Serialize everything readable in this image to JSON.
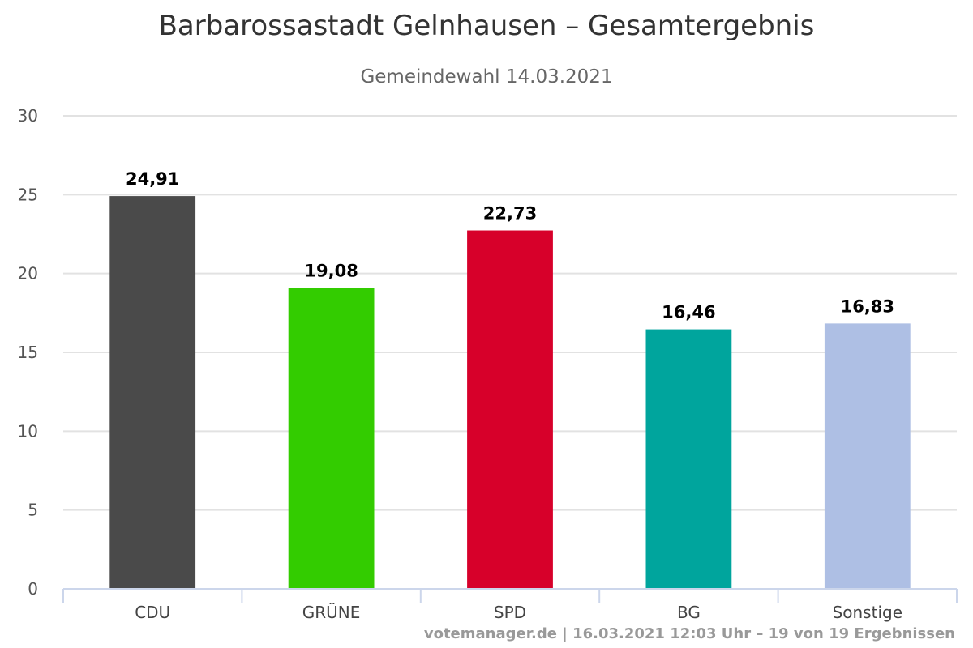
{
  "chart_data": {
    "type": "bar",
    "title": "Barbarossastadt Gelnhausen – Gesamtergebnis",
    "subtitle": "Gemeindewahl 14.03.2021",
    "categories": [
      "CDU",
      "GRÜNE",
      "SPD",
      "BG",
      "Sonstige"
    ],
    "values": [
      24.91,
      19.08,
      22.73,
      16.46,
      16.83
    ],
    "value_labels": [
      "24,91",
      "19,08",
      "22,73",
      "16,46",
      "16,83"
    ],
    "colors": [
      "#4a4a4a",
      "#33cc00",
      "#d7002a",
      "#00a59d",
      "#aebfe4"
    ],
    "ylim": [
      0,
      30
    ],
    "yticks": [
      0,
      5,
      10,
      15,
      20,
      25,
      30
    ],
    "grid": true,
    "legend": "none",
    "credits": "votemanager.de | 16.03.2021 12:03 Uhr – 19 von 19 Ergebnissen"
  }
}
